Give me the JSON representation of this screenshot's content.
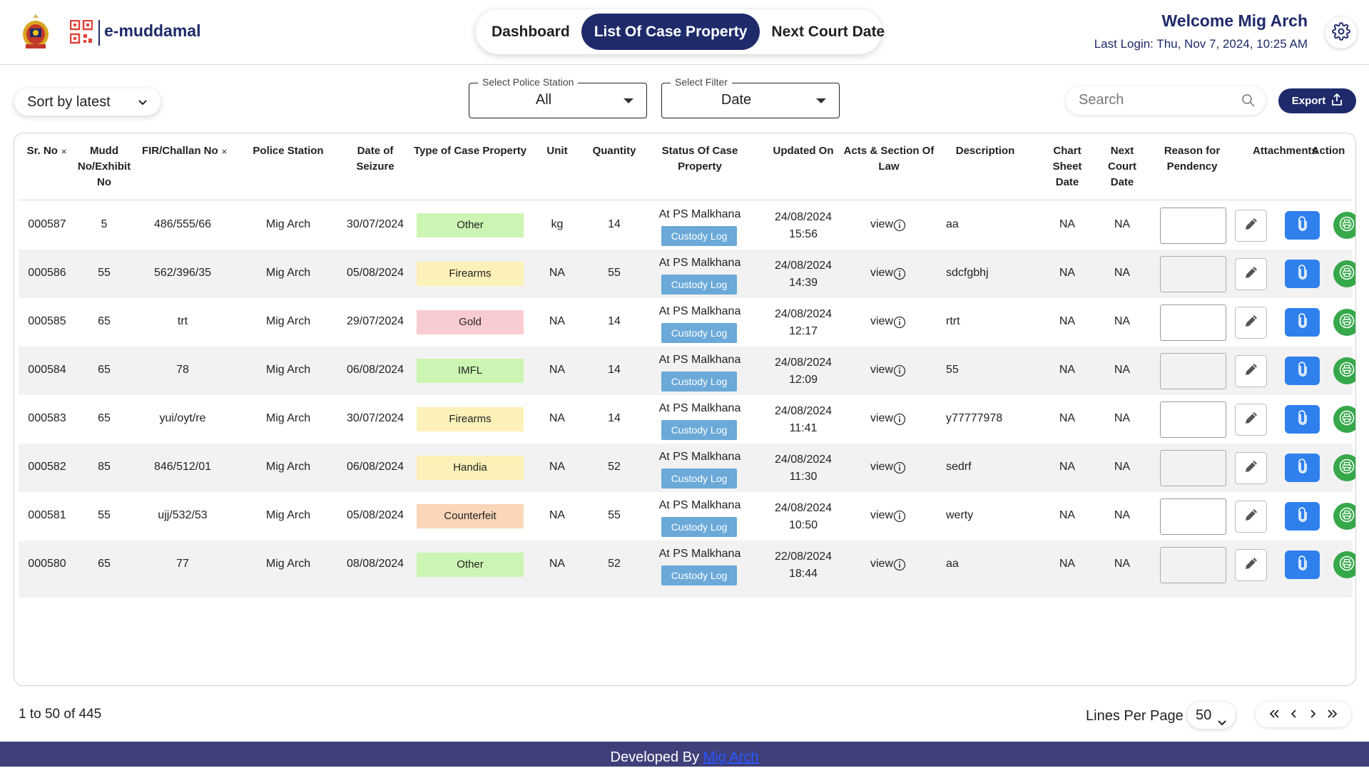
{
  "header": {
    "brand": "e-muddamal",
    "nav": [
      "Dashboard",
      "List Of Case Property",
      "Next Court Date"
    ],
    "active_nav_index": 1,
    "welcome": "Welcome Mig Arch",
    "last_login": "Last Login: Thu, Nov 7, 2024, 10:25 AM",
    "settings_icon": "gear-icon"
  },
  "toolbar": {
    "sort_label": "Sort by latest",
    "police_station_legend": "Select Police Station",
    "police_station_value": "All",
    "filter_legend": "Select Filter",
    "filter_value": "Date",
    "search_placeholder": "Search",
    "export_label": "Export"
  },
  "table": {
    "columns": [
      "Sr. No",
      "Mudd No/Exhibit No",
      "FIR/Challan No",
      "Police Station",
      "Date of Seizure",
      "Type of Case Property",
      "Unit",
      "Quantity",
      "Status Of Case Property",
      "Updated On",
      "Acts & Section Of Law",
      "Description",
      "Chart Sheet Date",
      "Next Court Date",
      "Reason for Pendency",
      "Attachments",
      "Action"
    ],
    "status_label": "At PS Malkhana",
    "custody_label": "Custody Log",
    "view_label": "view",
    "rows": [
      {
        "sr": "000587",
        "mudd": "5",
        "fir": "486/555/66",
        "ps": "Mig Arch",
        "date": "30/07/2024",
        "type": "Other",
        "type_color": "#ccf5b3",
        "unit": "kg",
        "qty": "14",
        "upd_date": "24/08/2024",
        "upd_time": "15:56",
        "desc": "aa",
        "chart": "NA",
        "next": "NA"
      },
      {
        "sr": "000586",
        "mudd": "55",
        "fir": "562/396/35",
        "ps": "Mig Arch",
        "date": "05/08/2024",
        "type": "Firearms",
        "type_color": "#fcf1b8",
        "unit": "NA",
        "qty": "55",
        "upd_date": "24/08/2024",
        "upd_time": "14:39",
        "desc": "sdcfgbhj",
        "chart": "NA",
        "next": "NA"
      },
      {
        "sr": "000585",
        "mudd": "65",
        "fir": "trt",
        "ps": "Mig Arch",
        "date": "29/07/2024",
        "type": "Gold",
        "type_color": "#f8ccd0",
        "unit": "NA",
        "qty": "14",
        "upd_date": "24/08/2024",
        "upd_time": "12:17",
        "desc": "rtrt",
        "chart": "NA",
        "next": "NA"
      },
      {
        "sr": "000584",
        "mudd": "65",
        "fir": "78",
        "ps": "Mig Arch",
        "date": "06/08/2024",
        "type": "IMFL",
        "type_color": "#ccf5b3",
        "unit": "NA",
        "qty": "14",
        "upd_date": "24/08/2024",
        "upd_time": "12:09",
        "desc": "55",
        "chart": "NA",
        "next": "NA"
      },
      {
        "sr": "000583",
        "mudd": "65",
        "fir": "yui/oyt/re",
        "ps": "Mig Arch",
        "date": "30/07/2024",
        "type": "Firearms",
        "type_color": "#fcf1b8",
        "unit": "NA",
        "qty": "14",
        "upd_date": "24/08/2024",
        "upd_time": "11:41",
        "desc": "y77777978",
        "chart": "NA",
        "next": "NA"
      },
      {
        "sr": "000582",
        "mudd": "85",
        "fir": "846/512/01",
        "ps": "Mig Arch",
        "date": "06/08/2024",
        "type": "Handia",
        "type_color": "#fcf1b8",
        "unit": "NA",
        "qty": "52",
        "upd_date": "24/08/2024",
        "upd_time": "11:30",
        "desc": "sedrf",
        "chart": "NA",
        "next": "NA"
      },
      {
        "sr": "000581",
        "mudd": "55",
        "fir": "ujj/532/53",
        "ps": "Mig Arch",
        "date": "05/08/2024",
        "type": "Counterfeit",
        "type_color": "#fbd6b8",
        "unit": "NA",
        "qty": "55",
        "upd_date": "24/08/2024",
        "upd_time": "10:50",
        "desc": "werty",
        "chart": "NA",
        "next": "NA"
      },
      {
        "sr": "000580",
        "mudd": "65",
        "fir": "77",
        "ps": "Mig Arch",
        "date": "08/08/2024",
        "type": "Other",
        "type_color": "#ccf5b3",
        "unit": "NA",
        "qty": "52",
        "upd_date": "22/08/2024",
        "upd_time": "18:44",
        "desc": "aa",
        "chart": "NA",
        "next": "NA"
      }
    ]
  },
  "pagination": {
    "summary": "1 to 50 of 445",
    "lines_per_page_label": "Lines Per Page :",
    "lines_per_page_value": "50"
  },
  "footer": {
    "prefix": "Developed By",
    "link": "Mig Arch"
  },
  "colors": {
    "primary": "#1f2a6b",
    "custody": "#6aa9d8",
    "attachment": "#2f80ed",
    "print": "#36a84a",
    "footer": "#3f4079"
  }
}
